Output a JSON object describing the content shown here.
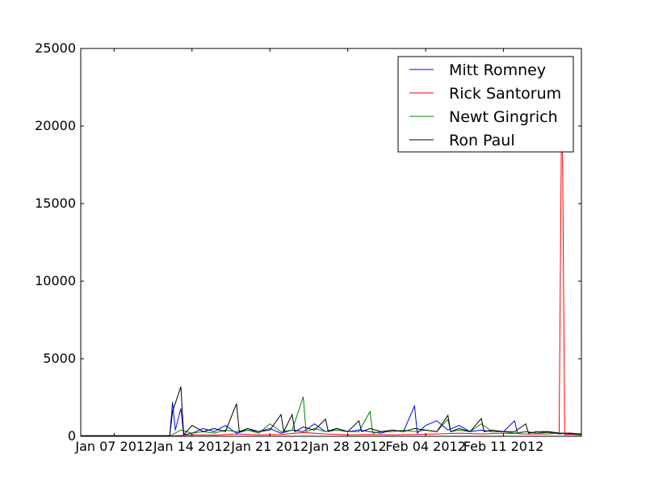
{
  "chart_data": {
    "type": "line",
    "x_kind": "date",
    "xlim": [
      "2012-01-04",
      "2012-02-18"
    ],
    "ylim": [
      0,
      25000
    ],
    "y_ticks": [
      0,
      5000,
      10000,
      15000,
      20000,
      25000
    ],
    "y_tick_labels": [
      "0",
      "5000",
      "10000",
      "15000",
      "20000",
      "25000"
    ],
    "x_ticks": [
      "2012-01-07",
      "2012-01-14",
      "2012-01-21",
      "2012-01-28",
      "2012-02-04",
      "2012-02-11"
    ],
    "x_tick_labels": [
      "Jan 07 2012",
      "Jan 14 2012",
      "Jan 21 2012",
      "Jan 28 2012",
      "Feb 04 2012",
      "Feb 11 2012"
    ],
    "grid": false,
    "legend_position": "top-right",
    "series": [
      {
        "name": "Mitt Romney",
        "color": "#0000ff",
        "points": [
          [
            "2012-01-04",
            30
          ],
          [
            "2012-01-12",
            30
          ],
          [
            "2012-01-12",
            2200
          ],
          [
            "2012-01-12",
            400
          ],
          [
            "2012-01-13",
            1800
          ],
          [
            "2012-01-13",
            100
          ],
          [
            "2012-01-14",
            200
          ],
          [
            "2012-01-15",
            500
          ],
          [
            "2012-01-16",
            300
          ],
          [
            "2012-01-17",
            700
          ],
          [
            "2012-01-18",
            200
          ],
          [
            "2012-01-19",
            400
          ],
          [
            "2012-01-20",
            300
          ],
          [
            "2012-01-21",
            500
          ],
          [
            "2012-01-22",
            200
          ],
          [
            "2012-01-23",
            400
          ],
          [
            "2012-01-24",
            300
          ],
          [
            "2012-01-25",
            800
          ],
          [
            "2012-01-26",
            300
          ],
          [
            "2012-01-27",
            500
          ],
          [
            "2012-01-28",
            300
          ],
          [
            "2012-01-29",
            400
          ],
          [
            "2012-01-30",
            300
          ],
          [
            "2012-01-31",
            200
          ],
          [
            "2012-02-01",
            400
          ],
          [
            "2012-02-02",
            300
          ],
          [
            "2012-02-03",
            1950
          ],
          [
            "2012-02-03",
            200
          ],
          [
            "2012-02-04",
            700
          ],
          [
            "2012-02-05",
            1000
          ],
          [
            "2012-02-06",
            400
          ],
          [
            "2012-02-07",
            700
          ],
          [
            "2012-02-08",
            300
          ],
          [
            "2012-02-09",
            400
          ],
          [
            "2012-02-10",
            300
          ],
          [
            "2012-02-11",
            300
          ],
          [
            "2012-02-12",
            1000
          ],
          [
            "2012-02-12",
            200
          ],
          [
            "2012-02-13",
            300
          ],
          [
            "2012-02-14",
            200
          ],
          [
            "2012-02-15",
            300
          ],
          [
            "2012-02-16",
            200
          ],
          [
            "2012-02-17",
            150
          ],
          [
            "2012-02-18",
            100
          ]
        ]
      },
      {
        "name": "Rick Santorum",
        "color": "#ff0000",
        "points": [
          [
            "2012-01-04",
            20
          ],
          [
            "2012-01-12",
            20
          ],
          [
            "2012-01-13",
            50
          ],
          [
            "2012-01-14",
            100
          ],
          [
            "2012-01-16",
            80
          ],
          [
            "2012-01-18",
            150
          ],
          [
            "2012-01-20",
            100
          ],
          [
            "2012-01-22",
            120
          ],
          [
            "2012-01-24",
            250
          ],
          [
            "2012-01-26",
            150
          ],
          [
            "2012-01-28",
            100
          ],
          [
            "2012-01-30",
            120
          ],
          [
            "2012-02-01",
            100
          ],
          [
            "2012-02-03",
            120
          ],
          [
            "2012-02-05",
            150
          ],
          [
            "2012-02-07",
            200
          ],
          [
            "2012-02-09",
            150
          ],
          [
            "2012-02-11",
            200
          ],
          [
            "2012-02-13",
            150
          ],
          [
            "2012-02-15",
            150
          ],
          [
            "2012-02-16",
            200
          ],
          [
            "2012-02-16",
            23700
          ],
          [
            "2012-02-16",
            100
          ],
          [
            "2012-02-17",
            120
          ],
          [
            "2012-02-18",
            80
          ]
        ]
      },
      {
        "name": "Newt Gingrich",
        "color": "#008000",
        "points": [
          [
            "2012-01-04",
            10
          ],
          [
            "2012-01-12",
            10
          ],
          [
            "2012-01-13",
            400
          ],
          [
            "2012-01-14",
            200
          ],
          [
            "2012-01-15",
            300
          ],
          [
            "2012-01-16",
            200
          ],
          [
            "2012-01-17",
            400
          ],
          [
            "2012-01-18",
            300
          ],
          [
            "2012-01-19",
            400
          ],
          [
            "2012-01-20",
            200
          ],
          [
            "2012-01-21",
            800
          ],
          [
            "2012-01-22",
            300
          ],
          [
            "2012-01-23",
            400
          ],
          [
            "2012-01-24",
            2550
          ],
          [
            "2012-01-24",
            300
          ],
          [
            "2012-01-25",
            500
          ],
          [
            "2012-01-26",
            300
          ],
          [
            "2012-01-27",
            400
          ],
          [
            "2012-01-28",
            300
          ],
          [
            "2012-01-29",
            300
          ],
          [
            "2012-01-30",
            1600
          ],
          [
            "2012-01-30",
            200
          ],
          [
            "2012-01-31",
            300
          ],
          [
            "2012-02-01",
            300
          ],
          [
            "2012-02-02",
            400
          ],
          [
            "2012-02-03",
            300
          ],
          [
            "2012-02-04",
            400
          ],
          [
            "2012-02-05",
            300
          ],
          [
            "2012-02-06",
            1100
          ],
          [
            "2012-02-06",
            300
          ],
          [
            "2012-02-07",
            400
          ],
          [
            "2012-02-08",
            300
          ],
          [
            "2012-02-09",
            800
          ],
          [
            "2012-02-10",
            300
          ],
          [
            "2012-02-11",
            300
          ],
          [
            "2012-02-12",
            200
          ],
          [
            "2012-02-13",
            300
          ],
          [
            "2012-02-14",
            200
          ],
          [
            "2012-02-15",
            250
          ],
          [
            "2012-02-16",
            150
          ],
          [
            "2012-02-17",
            200
          ],
          [
            "2012-02-18",
            100
          ]
        ]
      },
      {
        "name": "Ron Paul",
        "color": "#000000",
        "points": [
          [
            "2012-01-04",
            40
          ],
          [
            "2012-01-12",
            40
          ],
          [
            "2012-01-12",
            1600
          ],
          [
            "2012-01-13",
            3200
          ],
          [
            "2012-01-13",
            100
          ],
          [
            "2012-01-14",
            700
          ],
          [
            "2012-01-15",
            300
          ],
          [
            "2012-01-16",
            500
          ],
          [
            "2012-01-17",
            300
          ],
          [
            "2012-01-18",
            2100
          ],
          [
            "2012-01-18",
            300
          ],
          [
            "2012-01-19",
            500
          ],
          [
            "2012-01-20",
            300
          ],
          [
            "2012-01-21",
            400
          ],
          [
            "2012-01-22",
            1400
          ],
          [
            "2012-01-22",
            300
          ],
          [
            "2012-01-23",
            1400
          ],
          [
            "2012-01-23",
            300
          ],
          [
            "2012-01-24",
            600
          ],
          [
            "2012-01-25",
            400
          ],
          [
            "2012-01-26",
            1100
          ],
          [
            "2012-01-26",
            300
          ],
          [
            "2012-01-27",
            500
          ],
          [
            "2012-01-28",
            300
          ],
          [
            "2012-01-29",
            1000
          ],
          [
            "2012-01-29",
            300
          ],
          [
            "2012-01-30",
            500
          ],
          [
            "2012-01-31",
            300
          ],
          [
            "2012-02-01",
            400
          ],
          [
            "2012-02-02",
            300
          ],
          [
            "2012-02-03",
            500
          ],
          [
            "2012-02-04",
            400
          ],
          [
            "2012-02-05",
            300
          ],
          [
            "2012-02-06",
            1350
          ],
          [
            "2012-02-06",
            300
          ],
          [
            "2012-02-07",
            500
          ],
          [
            "2012-02-08",
            300
          ],
          [
            "2012-02-09",
            1150
          ],
          [
            "2012-02-09",
            300
          ],
          [
            "2012-02-10",
            400
          ],
          [
            "2012-02-11",
            300
          ],
          [
            "2012-02-12",
            300
          ],
          [
            "2012-02-13",
            800
          ],
          [
            "2012-02-13",
            200
          ],
          [
            "2012-02-14",
            300
          ],
          [
            "2012-02-15",
            300
          ],
          [
            "2012-02-16",
            200
          ],
          [
            "2012-02-17",
            200
          ],
          [
            "2012-02-18",
            150
          ]
        ]
      }
    ]
  }
}
